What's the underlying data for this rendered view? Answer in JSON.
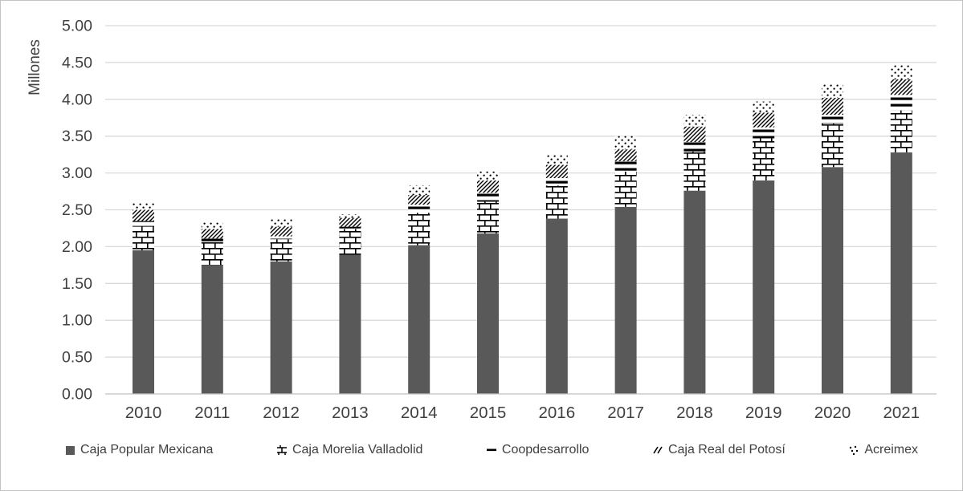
{
  "chart_data": {
    "type": "bar",
    "stacked": true,
    "title": "",
    "xlabel": "",
    "ylabel": "Millones",
    "ylim": [
      0,
      5
    ],
    "grid": true,
    "legend_position": "bottom",
    "categories": [
      "2010",
      "2011",
      "2012",
      "2013",
      "2014",
      "2015",
      "2016",
      "2017",
      "2018",
      "2019",
      "2020",
      "2021"
    ],
    "yticks": [
      {
        "value": 0.0,
        "label": "0.00"
      },
      {
        "value": 0.5,
        "label": "0.50"
      },
      {
        "value": 1.0,
        "label": "1.00"
      },
      {
        "value": 1.5,
        "label": "1.50"
      },
      {
        "value": 2.0,
        "label": "2.00"
      },
      {
        "value": 2.5,
        "label": "2.50"
      },
      {
        "value": 3.0,
        "label": "3.00"
      },
      {
        "value": 3.5,
        "label": "3.50"
      },
      {
        "value": 4.0,
        "label": "4.00"
      },
      {
        "value": 4.5,
        "label": "4.50"
      },
      {
        "value": 5.0,
        "label": "5.00"
      }
    ],
    "series": [
      {
        "name": "Caja Popular Mexicana",
        "pattern": "solid",
        "values": [
          1.95,
          1.75,
          1.8,
          1.89,
          2.02,
          2.18,
          2.38,
          2.54,
          2.76,
          2.9,
          3.08,
          3.28
        ]
      },
      {
        "name": "Caja Morelia Valladolid",
        "pattern": "brick",
        "values": [
          0.33,
          0.31,
          0.3,
          0.35,
          0.44,
          0.43,
          0.45,
          0.48,
          0.53,
          0.57,
          0.59,
          0.57
        ]
      },
      {
        "name": "Coopdesarrollo",
        "pattern": "hlines",
        "values": [
          0.07,
          0.05,
          0.04,
          0.03,
          0.11,
          0.12,
          0.1,
          0.14,
          0.13,
          0.15,
          0.12,
          0.21
        ]
      },
      {
        "name": "Caja Real del Potosí",
        "pattern": "diag",
        "values": [
          0.15,
          0.13,
          0.13,
          0.12,
          0.13,
          0.17,
          0.18,
          0.16,
          0.21,
          0.2,
          0.23,
          0.21
        ]
      },
      {
        "name": "Acreimex",
        "pattern": "dots",
        "values": [
          0.1,
          0.1,
          0.1,
          0.05,
          0.13,
          0.12,
          0.14,
          0.18,
          0.16,
          0.15,
          0.18,
          0.2
        ]
      }
    ],
    "colors": {
      "bar_solid": "#595959",
      "pattern_ink": "#000000",
      "pattern_bg": "#ffffff",
      "gridline": "#d9d9d9",
      "axis_line": "#bfbfbf",
      "tick_text": "#404040"
    }
  }
}
